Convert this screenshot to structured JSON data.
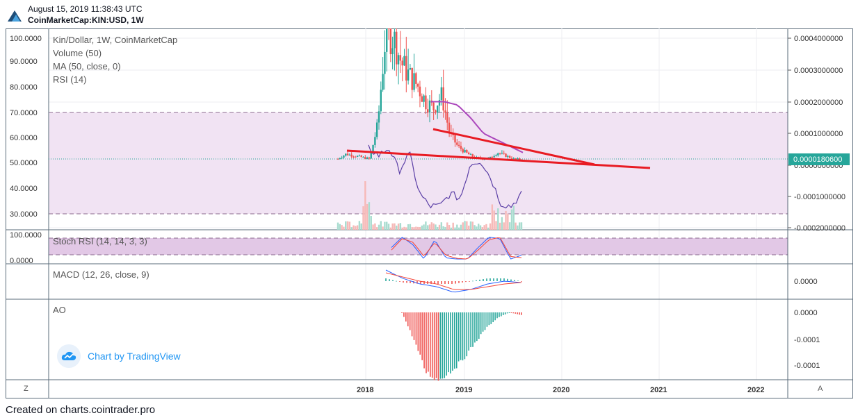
{
  "header": {
    "date": "August 15, 2019 11:38:43 UTC",
    "symbol": "CoinMarketCap:KIN:USD, 1W"
  },
  "footer": {
    "text": "Created on charts.cointrader.pro"
  },
  "watermark": {
    "text": "Chart by TradingView",
    "icon": "tradingview-cloud-icon"
  },
  "colors": {
    "up": "#26a69a",
    "down": "#ef5350",
    "trendline": "#e81b23",
    "ma": "#ab47bc",
    "rsi": "#5b3fa6",
    "rsi_band": "#e8d5ee",
    "price_label_bg": "#26a69a",
    "macd": "#2962ff",
    "signal": "#f44336"
  },
  "buttons": {
    "left": "Z",
    "right": "A"
  },
  "chart_data": [
    {
      "type": "candlestick",
      "title": "Kin/Dollar, 1W, CoinMarketCap",
      "legend": [
        "Volume (50)",
        "MA (50, close, 0)",
        "RSI (14)"
      ],
      "xlabels": [
        "2018",
        "2019",
        "2020",
        "2021",
        "2022"
      ],
      "left_ticks": [
        "100.0000",
        "90.0000",
        "80.0000",
        "70.0000",
        "60.0000",
        "50.0000",
        "40.0000",
        "30.0000"
      ],
      "right_ticks": [
        "0.0004000000",
        "0.0003000000",
        "0.0002000000",
        "0.0001000000",
        "0.0000000000",
        "-0.0001000000",
        "-0.0002000000"
      ],
      "last_price": "0.0000180600",
      "rsi_levels": [
        70,
        30
      ],
      "price_range": [
        0,
        0.00042
      ],
      "prices_approx": [
        2e-05,
        3.5e-05,
        3e-05,
        2.5e-05,
        2e-05,
        0.00013,
        0.00042,
        0.0004,
        0.00032,
        0.00028,
        0.00025,
        0.0002,
        0.00018,
        0.00022,
        0.0001,
        6e-05,
        4e-05,
        2.5e-05,
        2e-05,
        2.2e-05,
        4e-05,
        3e-05,
        2e-05,
        1.8e-05
      ],
      "trendlines": [
        {
          "from": "2017-10",
          "to": "2020-11",
          "label": ""
        },
        {
          "from": "2018-08",
          "to": "2020-05",
          "label": ""
        }
      ],
      "ma_approx": [
        0.0002,
        0.0002,
        0.00019,
        0.00015,
        0.0001,
        8e-05,
        6e-05,
        4e-05
      ],
      "rsi_approx": [
        56,
        53,
        56,
        47,
        54,
        38,
        33,
        33,
        38,
        36,
        50,
        51,
        44,
        34,
        33,
        38
      ]
    },
    {
      "type": "line",
      "title": "Stoch RSI (14, 14, 3, 3)",
      "left_ticks": [
        "100.0000",
        "0.0000"
      ],
      "levels": [
        80,
        20
      ],
      "k_approx": [
        50,
        90,
        60,
        5,
        80,
        10,
        5,
        5,
        50,
        90,
        85,
        5,
        20
      ],
      "d_approx": [
        40,
        85,
        70,
        15,
        70,
        20,
        8,
        5,
        40,
        80,
        90,
        15,
        10
      ]
    },
    {
      "type": "line",
      "title": "MACD (12, 26, close, 9)",
      "right_ticks": [
        "0.0000"
      ],
      "macd_approx": [
        4e-05,
        1e-05,
        -1e-05,
        -2e-05,
        -4e-05,
        -3e-05,
        -1e-05,
        0.0,
        -5e-06
      ],
      "signal_approx": [
        3e-05,
        1.5e-05,
        0.0,
        -1e-05,
        -3e-05,
        -3e-05,
        -2e-05,
        -1e-05,
        -5e-06
      ]
    },
    {
      "type": "bar",
      "title": "AO",
      "right_ticks": [
        "0.0000",
        "-0.0001",
        "-0.0001"
      ],
      "values_approx": [
        0.0,
        -0.0001,
        -0.00022,
        -0.00025,
        -0.00022,
        -0.00018,
        -0.00012,
        -6e-05,
        -2e-05,
        0.0,
        -1e-05
      ]
    }
  ]
}
